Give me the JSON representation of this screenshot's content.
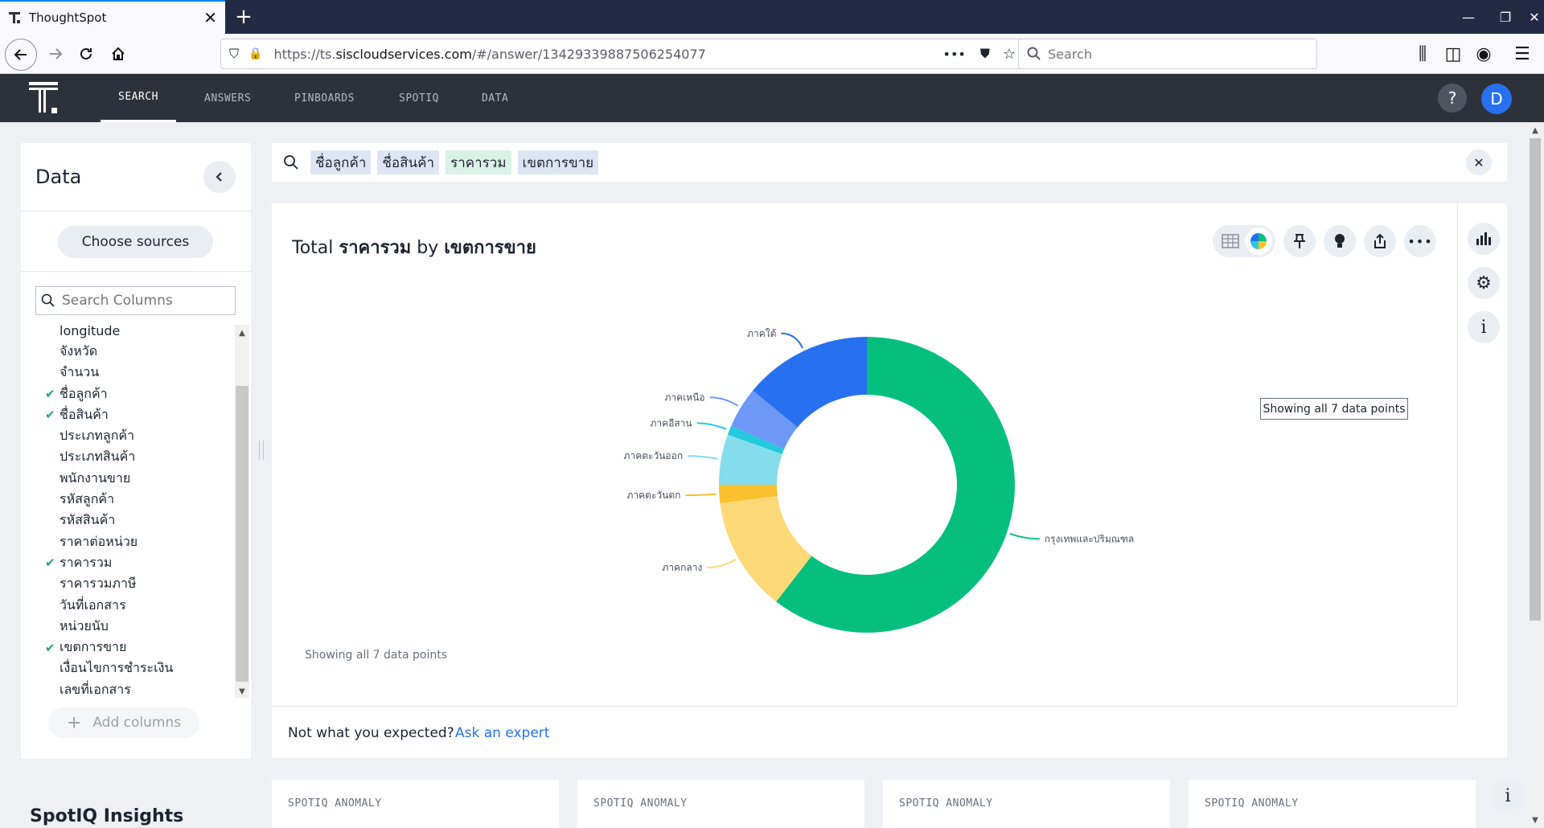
{
  "browser": {
    "tab_title": "ThoughtSpot",
    "url_prefix": "https://ts.",
    "url_domain": "siscloudservices.com",
    "url_path": "/#/answer/134293398875062540​77",
    "search_placeholder": "Search"
  },
  "app": {
    "nav": [
      "SEARCH",
      "ANSWERS",
      "PINBOARDS",
      "SPOTIQ",
      "DATA"
    ],
    "active_nav": "SEARCH",
    "help_label": "?",
    "avatar_initial": "D"
  },
  "data_panel": {
    "title": "Data",
    "choose_sources": "Choose sources",
    "search_placeholder": "Search Columns",
    "add_columns": "Add columns",
    "columns": [
      {
        "name": "longitude",
        "checked": false
      },
      {
        "name": "จังหวัด",
        "checked": false
      },
      {
        "name": "จำนวน",
        "checked": false
      },
      {
        "name": "ชื่อลูกค้า",
        "checked": true
      },
      {
        "name": "ชื่อสินค้า",
        "checked": true
      },
      {
        "name": "ประเภทลูกค้า",
        "checked": false
      },
      {
        "name": "ประเภทสินค้า",
        "checked": false
      },
      {
        "name": "พนักงานขาย",
        "checked": false
      },
      {
        "name": "รหัสลูกค้า",
        "checked": false
      },
      {
        "name": "รหัสสินค้า",
        "checked": false
      },
      {
        "name": "ราคาต่อหน่วย",
        "checked": false
      },
      {
        "name": "ราคารวม",
        "checked": true
      },
      {
        "name": "ราคารวมภาษี",
        "checked": false
      },
      {
        "name": "วันที่เอกสาร",
        "checked": false
      },
      {
        "name": "หน่วยนับ",
        "checked": false
      },
      {
        "name": "เขตการขาย",
        "checked": true
      },
      {
        "name": "เงื่อนไขการชำระเงิน",
        "checked": false
      },
      {
        "name": "เลขที่เอกสาร",
        "checked": false
      }
    ]
  },
  "query": {
    "tokens": [
      {
        "text": "ชื่อลูกค้า",
        "kind": "attr"
      },
      {
        "text": "ชื่อสินค้า",
        "kind": "attr"
      },
      {
        "text": "ราคารวม",
        "kind": "meas"
      },
      {
        "text": "เขตการขาย",
        "kind": "attr"
      }
    ]
  },
  "answer": {
    "title_prefix": "Total ",
    "title_measure": "ราคารวม",
    "title_by": " by ",
    "title_attr": "เขตการขาย",
    "showing_tooltip": "Showing all 7 data points",
    "showing_footer": "Showing all 7 data points",
    "not_expected": "Not what you expected?",
    "ask_expert": "Ask an expert"
  },
  "chart_data": {
    "type": "pie",
    "title": "Total ราคารวม by เขตการขาย",
    "categories": [
      "กรุงเทพและปริมณฑล",
      "ภาคกลาง",
      "ภาคตะวันตก",
      "ภาคตะวันออก",
      "ภาคอีสาน",
      "ภาคเหนือ",
      "ภาคใต้"
    ],
    "values": [
      60.5,
      12.5,
      2.0,
      5.5,
      1.0,
      4.5,
      14.0
    ],
    "unit": "percent (estimated share)",
    "colors": [
      "#06bf7f",
      "#fcd976",
      "#fbc02d",
      "#84dcec",
      "#23c9dd",
      "#6d98f5",
      "#2770ef"
    ],
    "donut": true
  },
  "spotiq": {
    "title": "SpotIQ Insights",
    "cards": [
      "SPOTIQ ANOMALY",
      "SPOTIQ ANOMALY",
      "SPOTIQ ANOMALY",
      "SPOTIQ ANOMALY"
    ]
  }
}
